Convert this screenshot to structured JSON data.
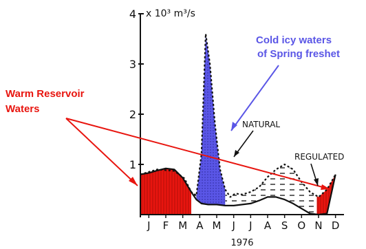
{
  "chart_data": {
    "type": "area",
    "ylabel": "x 10³ m³/s",
    "ytick_labels": [
      "1",
      "2",
      "3",
      "4"
    ],
    "ylim": [
      0,
      4
    ],
    "xtick_labels": [
      "J",
      "F",
      "M",
      "A",
      "M",
      "J",
      "J",
      "A",
      "S",
      "O",
      "N",
      "D"
    ],
    "xlabel": "1976",
    "series": [
      {
        "name": "NATURAL",
        "x": [
          0.0,
          1.0,
          2.0,
          2.6,
          3.0,
          3.3,
          3.6,
          3.85,
          4.1,
          4.4,
          4.7,
          5.0,
          5.3,
          5.6,
          6.0,
          6.5,
          7.0,
          7.5,
          8.0,
          8.5,
          9.0,
          9.5,
          10.0,
          10.5,
          11.0,
          11.5
        ],
        "values": [
          0.8,
          0.9,
          0.87,
          0.72,
          0.45,
          0.38,
          1.2,
          3.6,
          3.0,
          1.8,
          0.9,
          0.5,
          0.35,
          0.42,
          0.4,
          0.45,
          0.55,
          0.75,
          0.9,
          1.0,
          0.9,
          0.65,
          0.45,
          0.35,
          0.5,
          0.8
        ]
      },
      {
        "name": "REGULATED",
        "x": [
          0.0,
          0.5,
          1.0,
          1.5,
          2.0,
          2.5,
          3.0,
          3.3,
          3.6,
          4.0,
          4.5,
          5.0,
          5.5,
          6.0,
          6.5,
          7.0,
          7.5,
          8.0,
          8.5,
          9.0,
          9.5,
          10.0,
          10.5,
          11.0,
          11.5
        ],
        "values": [
          0.8,
          0.83,
          0.88,
          0.92,
          0.9,
          0.73,
          0.45,
          0.3,
          0.22,
          0.2,
          0.2,
          0.18,
          0.18,
          0.2,
          0.22,
          0.28,
          0.35,
          0.35,
          0.3,
          0.22,
          0.12,
          0.02,
          0.0,
          0.02,
          0.8
        ]
      }
    ],
    "annotations": {
      "natural": "NATURAL",
      "regulated": "REGULATED",
      "warm_line1": "Warm Reservoir",
      "warm_line2": "Waters",
      "cold_line1": "Cold icy waters",
      "cold_line2": "of Spring freshet"
    },
    "colors": {
      "warm": "#e8150f",
      "cold": "#5a56e6",
      "curve": "#111111"
    }
  }
}
